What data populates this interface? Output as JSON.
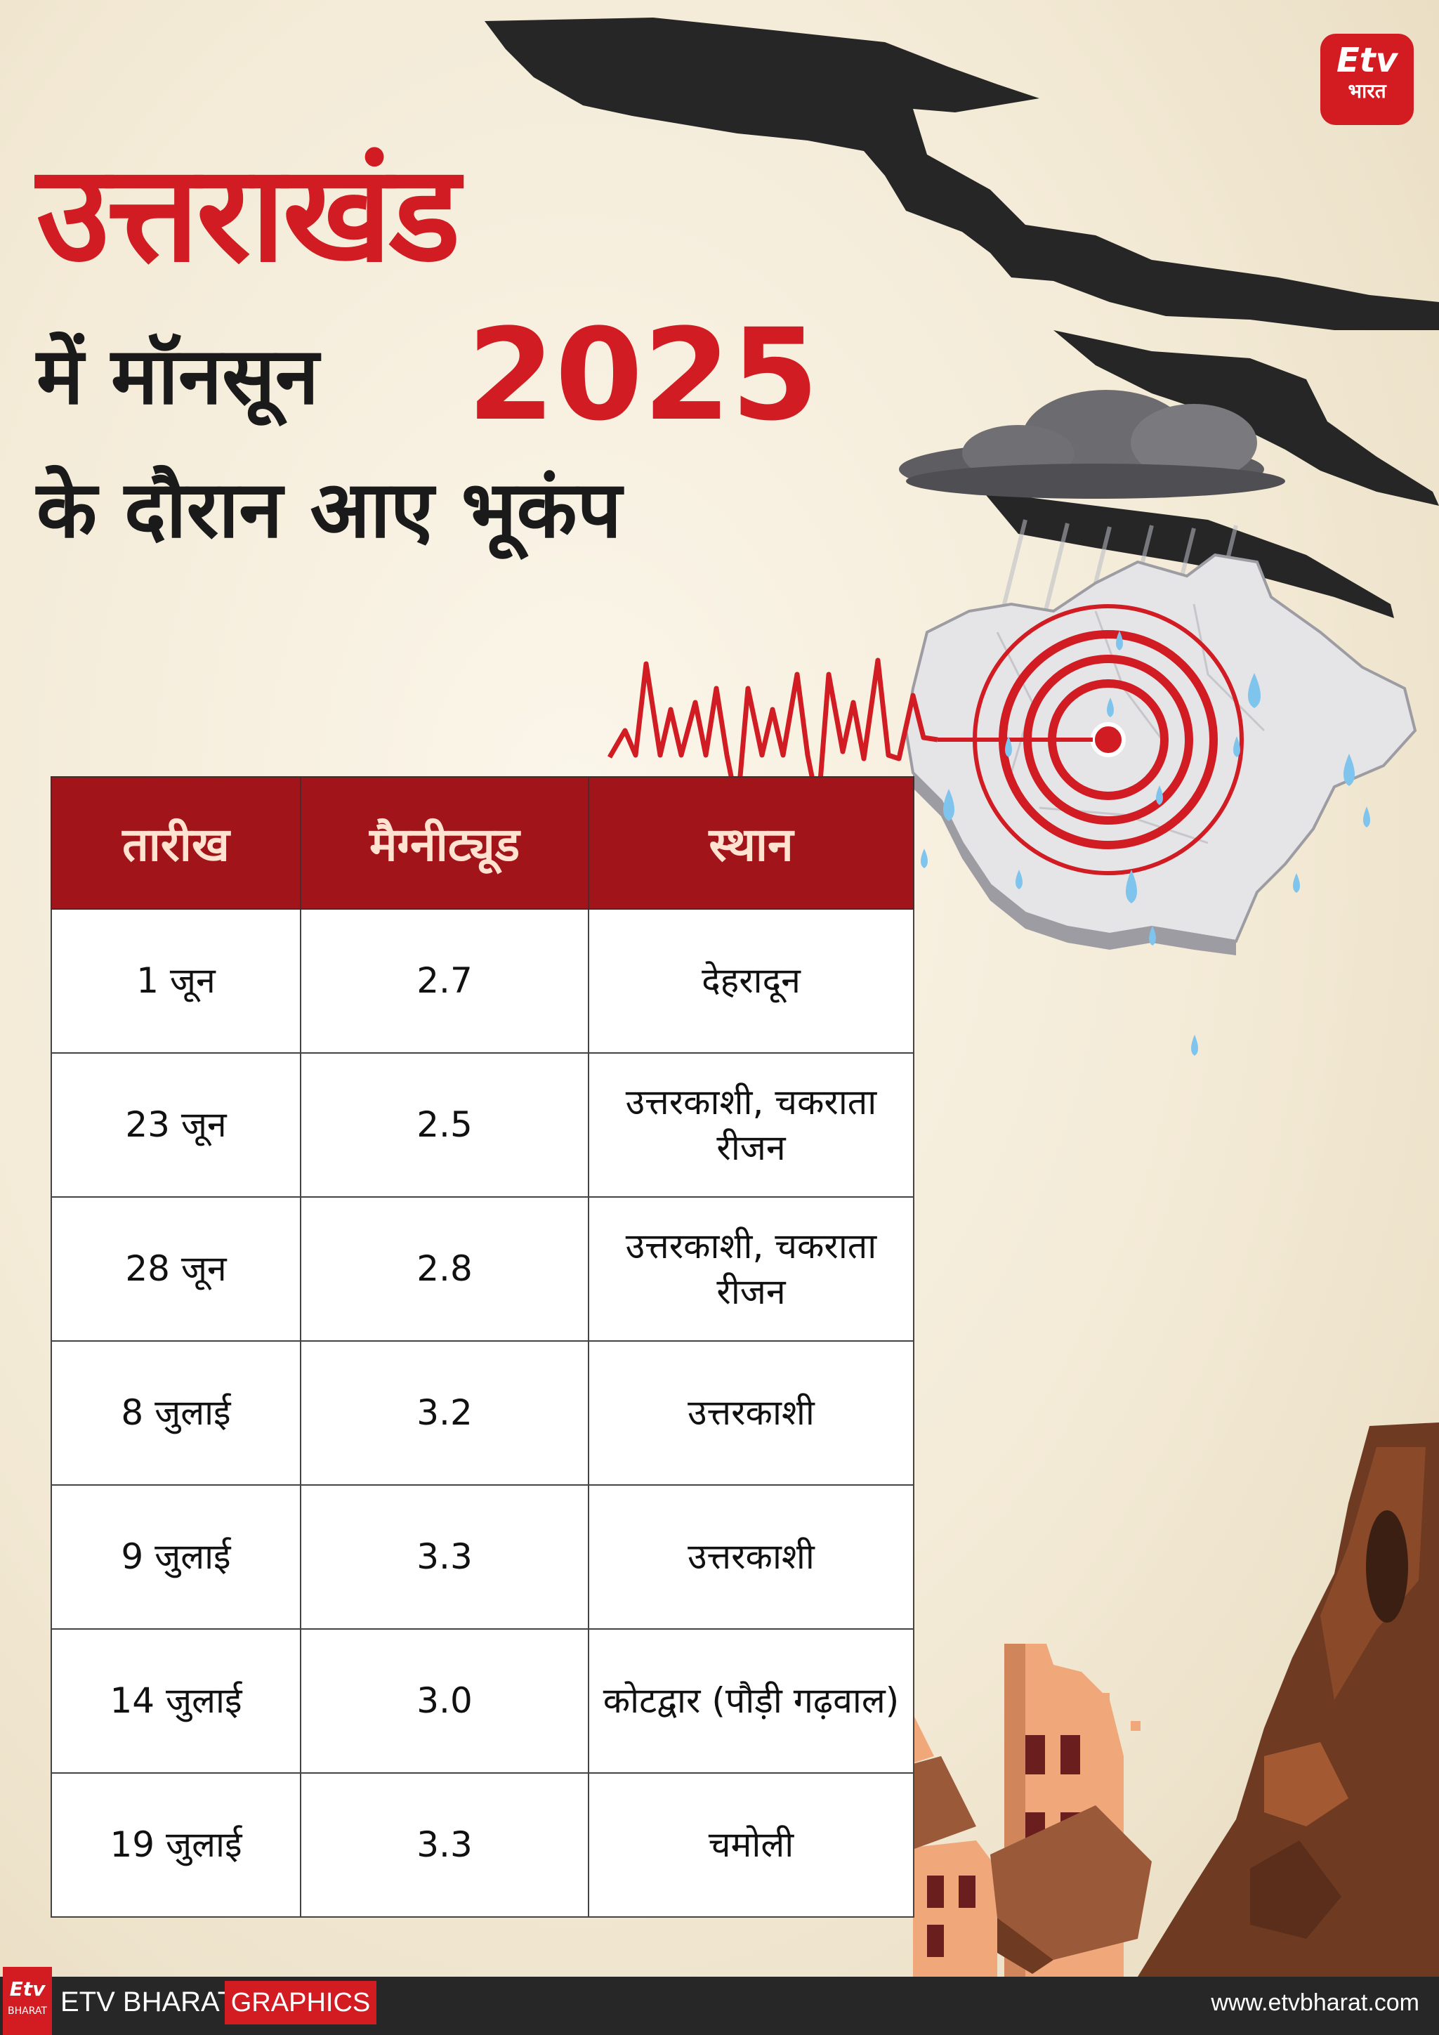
{
  "brand": {
    "logo_mark": "Etv",
    "logo_sub": "भारत",
    "footer_logo_mark": "Etv",
    "footer_logo_sub": "BHARAT"
  },
  "title": {
    "line1": "उत्तराखंड",
    "line2": "में मॉनसून",
    "year": "2025",
    "line3": "के दौरान आए भूकंप"
  },
  "table": {
    "headers": [
      "तारीख",
      "मैग्नीट्यूड",
      "स्थान"
    ],
    "rows": [
      {
        "date": "1 जून",
        "magnitude": "2.7",
        "place": "देहरादून"
      },
      {
        "date": "23 जून",
        "magnitude": "2.5",
        "place": "उत्तरकाशी, चकराता रीजन"
      },
      {
        "date": "28 जून",
        "magnitude": "2.8",
        "place": "उत्तरकाशी, चकराता रीजन"
      },
      {
        "date": "8 जुलाई",
        "magnitude": "3.2",
        "place": "उत्तरकाशी"
      },
      {
        "date": "9 जुलाई",
        "magnitude": "3.3",
        "place": "उत्तरकाशी"
      },
      {
        "date": "14 जुलाई",
        "magnitude": "3.0",
        "place": "कोटद्वार (पौड़ी गढ़वाल)"
      },
      {
        "date": "19 जुलाई",
        "magnitude": "3.3",
        "place": "चमोली"
      }
    ]
  },
  "footer": {
    "brand": "ETV BHARAT",
    "tag": "GRAPHICS",
    "url": "www.etvbharat.com"
  },
  "colors": {
    "accent_red": "#d01c22",
    "header_red": "#a1141a",
    "footer_bg": "#272727"
  },
  "illustrations": [
    "ground-crack",
    "rain-cloud",
    "uttarakhand-map",
    "raindrops",
    "seismic-wave",
    "epicenter-target",
    "collapsed-buildings",
    "rock-cliff"
  ]
}
